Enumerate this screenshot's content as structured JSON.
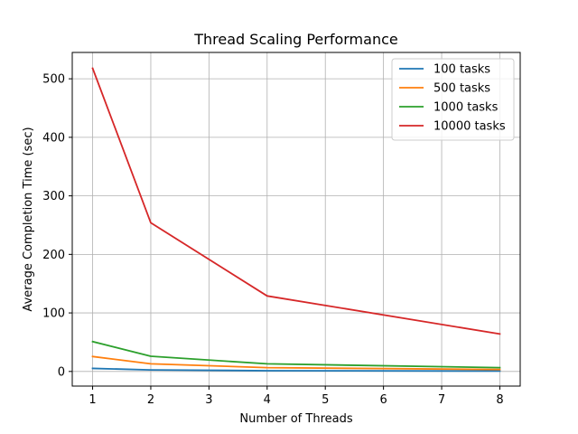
{
  "chart_data": {
    "type": "line",
    "title": "Thread Scaling Performance",
    "xlabel": "Number of Threads",
    "ylabel": "Average Completion Time (sec)",
    "x": [
      1,
      2,
      4,
      8
    ],
    "xlim": [
      0.65,
      8.35
    ],
    "ylim": [
      -25,
      545
    ],
    "xticks": [
      1,
      2,
      3,
      4,
      5,
      6,
      7,
      8
    ],
    "yticks": [
      0,
      100,
      200,
      300,
      400,
      500
    ],
    "grid": true,
    "legend_position": "top-right",
    "series": [
      {
        "name": "100 tasks",
        "color": "#1f77b4",
        "values": [
          5.2,
          2.6,
          1.3,
          0.7
        ]
      },
      {
        "name": "500 tasks",
        "color": "#ff7f0e",
        "values": [
          25.5,
          13.0,
          6.5,
          3.3
        ]
      },
      {
        "name": "1000 tasks",
        "color": "#2ca02c",
        "values": [
          51.0,
          26.0,
          13.0,
          6.5
        ]
      },
      {
        "name": "10000 tasks",
        "color": "#d62728",
        "values": [
          518.0,
          254.0,
          129.0,
          64.0
        ]
      }
    ]
  }
}
